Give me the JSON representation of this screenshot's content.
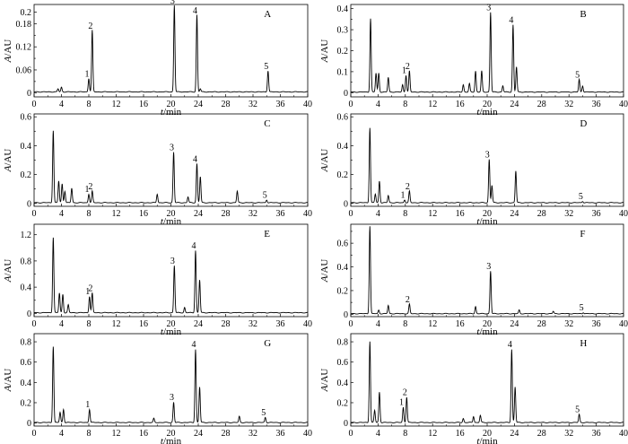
{
  "chart_data": [
    {
      "type": "line",
      "title": "A",
      "xlabel": "t/min",
      "ylabel": "A/AU",
      "xlim": [
        0,
        40
      ],
      "ylim": [
        -0.01,
        0.23
      ],
      "yticks": [
        0.0,
        0.03,
        0.06,
        0.09,
        0.12,
        0.15,
        0.18,
        0.21
      ],
      "ytick_labels": [
        "0",
        "",
        "0.06",
        "",
        "0.12",
        "",
        "0.18",
        "0.2"
      ],
      "xticks": [
        0,
        4,
        8,
        12,
        16,
        20,
        24,
        28,
        32,
        36,
        40
      ],
      "baseline": 0.003,
      "peaks": [
        [
          3.5,
          0.008
        ],
        [
          4.0,
          0.012
        ],
        [
          8.0,
          0.035
        ],
        [
          8.5,
          0.16
        ],
        [
          20.5,
          0.225
        ],
        [
          23.8,
          0.2
        ],
        [
          24.3,
          0.008
        ],
        [
          34.2,
          0.055
        ]
      ],
      "peak_labels": [
        {
          "x": 8.0,
          "text": "1"
        },
        {
          "x": 8.5,
          "text": "2"
        },
        {
          "x": 20.5,
          "text": "3"
        },
        {
          "x": 23.8,
          "text": "4"
        },
        {
          "x": 34.2,
          "text": "5"
        }
      ]
    },
    {
      "type": "line",
      "title": "B",
      "xlabel": "t/min",
      "ylabel": "A/AU",
      "xlim": [
        0,
        40
      ],
      "ylim": [
        -0.02,
        0.42
      ],
      "yticks": [
        0.0,
        0.05,
        0.1,
        0.15,
        0.2,
        0.25,
        0.3,
        0.35,
        0.4
      ],
      "ytick_labels": [
        "0",
        "",
        "0.1",
        "",
        "0.2",
        "",
        "0.3",
        "",
        "0.4"
      ],
      "xticks": [
        0,
        4,
        8,
        12,
        16,
        20,
        24,
        28,
        32,
        36,
        40
      ],
      "baseline": 0.003,
      "peaks": [
        [
          2.9,
          0.35
        ],
        [
          3.7,
          0.09
        ],
        [
          4.1,
          0.09
        ],
        [
          5.5,
          0.07
        ],
        [
          7.6,
          0.035
        ],
        [
          8.1,
          0.08
        ],
        [
          8.6,
          0.1
        ],
        [
          16.5,
          0.035
        ],
        [
          17.4,
          0.04
        ],
        [
          18.3,
          0.1
        ],
        [
          19.2,
          0.1
        ],
        [
          20.5,
          0.38
        ],
        [
          22.3,
          0.03
        ],
        [
          23.8,
          0.32
        ],
        [
          24.3,
          0.12
        ],
        [
          33.5,
          0.06
        ],
        [
          34.0,
          0.03
        ]
      ],
      "peak_labels": [
        {
          "x": 8.1,
          "text": "1"
        },
        {
          "x": 8.6,
          "text": "2"
        },
        {
          "x": 20.5,
          "text": "3"
        },
        {
          "x": 23.8,
          "text": "4"
        },
        {
          "x": 33.5,
          "text": "5"
        }
      ]
    },
    {
      "type": "line",
      "title": "C",
      "xlabel": "t/min",
      "ylabel": "A/AU",
      "xlim": [
        0,
        40
      ],
      "ylim": [
        -0.02,
        0.62
      ],
      "yticks": [
        0.0,
        0.1,
        0.2,
        0.3,
        0.4,
        0.5,
        0.6
      ],
      "ytick_labels": [
        "0",
        "",
        "0.2",
        "",
        "0.4",
        "",
        "0.6"
      ],
      "xticks": [
        0,
        4,
        8,
        12,
        16,
        20,
        24,
        28,
        32,
        36,
        40
      ],
      "baseline": 0.005,
      "peaks": [
        [
          2.8,
          0.5
        ],
        [
          3.6,
          0.15
        ],
        [
          4.1,
          0.13
        ],
        [
          4.5,
          0.08
        ],
        [
          5.5,
          0.1
        ],
        [
          8.0,
          0.06
        ],
        [
          8.5,
          0.08
        ],
        [
          18.0,
          0.06
        ],
        [
          20.4,
          0.35
        ],
        [
          22.5,
          0.04
        ],
        [
          23.8,
          0.27
        ],
        [
          24.3,
          0.18
        ],
        [
          29.7,
          0.08
        ],
        [
          34.0,
          0.02
        ]
      ],
      "peak_labels": [
        {
          "x": 8.0,
          "text": "1"
        },
        {
          "x": 8.5,
          "text": "2"
        },
        {
          "x": 20.4,
          "text": "3"
        },
        {
          "x": 23.8,
          "text": "4"
        },
        {
          "x": 34.0,
          "text": "5"
        }
      ]
    },
    {
      "type": "line",
      "title": "D",
      "xlabel": "t/min",
      "ylabel": "A/AU",
      "xlim": [
        0,
        40
      ],
      "ylim": [
        -0.02,
        0.62
      ],
      "yticks": [
        0.0,
        0.1,
        0.2,
        0.3,
        0.4,
        0.5,
        0.6
      ],
      "ytick_labels": [
        "0",
        "",
        "0.2",
        "",
        "0.4",
        "",
        "0.6"
      ],
      "xticks": [
        0,
        4,
        8,
        12,
        16,
        20,
        24,
        28,
        32,
        36,
        40
      ],
      "baseline": 0.005,
      "peaks": [
        [
          2.8,
          0.52
        ],
        [
          3.6,
          0.06
        ],
        [
          4.2,
          0.15
        ],
        [
          5.5,
          0.05
        ],
        [
          7.9,
          0.02
        ],
        [
          8.6,
          0.08
        ],
        [
          20.3,
          0.3
        ],
        [
          20.7,
          0.12
        ],
        [
          24.2,
          0.22
        ],
        [
          34.0,
          0.01
        ]
      ],
      "peak_labels": [
        {
          "x": 7.9,
          "text": "1"
        },
        {
          "x": 8.6,
          "text": "2"
        },
        {
          "x": 20.3,
          "text": "3"
        },
        {
          "x": 34.0,
          "text": "5"
        }
      ]
    },
    {
      "type": "line",
      "title": "E",
      "xlabel": "t/min",
      "ylabel": "A/AU",
      "xlim": [
        0,
        40
      ],
      "ylim": [
        -0.05,
        1.36
      ],
      "yticks": [
        0.0,
        0.2,
        0.4,
        0.6,
        0.8,
        1.0,
        1.2
      ],
      "ytick_labels": [
        "0",
        "",
        "0.4",
        "",
        "0.8",
        "",
        "1.2"
      ],
      "xticks": [
        0,
        4,
        8,
        12,
        16,
        20,
        24,
        28,
        32,
        36,
        40
      ],
      "baseline": 0.01,
      "peaks": [
        [
          2.8,
          1.15
        ],
        [
          3.7,
          0.3
        ],
        [
          4.2,
          0.28
        ],
        [
          5.0,
          0.12
        ],
        [
          8.1,
          0.25
        ],
        [
          8.5,
          0.3
        ],
        [
          20.5,
          0.72
        ],
        [
          22.0,
          0.08
        ],
        [
          23.6,
          0.95
        ],
        [
          24.2,
          0.5
        ]
      ],
      "peak_labels": [
        {
          "x": 8.1,
          "text": "1"
        },
        {
          "x": 8.5,
          "text": "2"
        },
        {
          "x": 20.5,
          "text": "3"
        },
        {
          "x": 23.6,
          "text": "4"
        }
      ]
    },
    {
      "type": "line",
      "title": "F",
      "xlabel": "t/min",
      "ylabel": "A/AU",
      "xlim": [
        0,
        40
      ],
      "ylim": [
        -0.02,
        0.76
      ],
      "yticks": [
        0.0,
        0.1,
        0.2,
        0.3,
        0.4,
        0.5,
        0.6,
        0.7
      ],
      "ytick_labels": [
        "0",
        "",
        "0.2",
        "",
        "0.4",
        "",
        "0.6",
        ""
      ],
      "xticks": [
        0,
        4,
        8,
        12,
        16,
        20,
        24,
        28,
        32,
        36,
        40
      ],
      "baseline": 0.005,
      "peaks": [
        [
          2.8,
          0.74
        ],
        [
          4.1,
          0.03
        ],
        [
          5.5,
          0.07
        ],
        [
          8.6,
          0.08
        ],
        [
          18.3,
          0.06
        ],
        [
          20.5,
          0.36
        ],
        [
          24.7,
          0.03
        ],
        [
          29.7,
          0.02
        ],
        [
          34.1,
          0.01
        ]
      ],
      "peak_labels": [
        {
          "x": 8.6,
          "text": "2"
        },
        {
          "x": 20.5,
          "text": "3"
        },
        {
          "x": 34.1,
          "text": "5"
        }
      ]
    },
    {
      "type": "line",
      "title": "G",
      "xlabel": "t/min",
      "ylabel": "A/AU",
      "xlim": [
        0,
        40
      ],
      "ylim": [
        -0.03,
        0.88
      ],
      "yticks": [
        0.0,
        0.2,
        0.4,
        0.6,
        0.8
      ],
      "ytick_labels": [
        "0",
        "0.2",
        "0.4",
        "0.6",
        "0.8"
      ],
      "xticks": [
        0,
        4,
        8,
        12,
        16,
        20,
        24,
        28,
        32,
        36,
        40
      ],
      "baseline": 0.005,
      "peaks": [
        [
          2.8,
          0.75
        ],
        [
          3.8,
          0.1
        ],
        [
          4.3,
          0.13
        ],
        [
          8.1,
          0.13
        ],
        [
          17.5,
          0.04
        ],
        [
          20.4,
          0.2
        ],
        [
          23.6,
          0.72
        ],
        [
          24.2,
          0.35
        ],
        [
          30.0,
          0.06
        ],
        [
          33.8,
          0.05
        ]
      ],
      "peak_labels": [
        {
          "x": 8.1,
          "text": "1"
        },
        {
          "x": 20.4,
          "text": "3"
        },
        {
          "x": 23.6,
          "text": "4"
        },
        {
          "x": 33.8,
          "text": "5"
        }
      ]
    },
    {
      "type": "line",
      "title": "H",
      "xlabel": "t/min",
      "ylabel": "A/AU",
      "xlim": [
        0,
        40
      ],
      "ylim": [
        -0.03,
        0.88
      ],
      "yticks": [
        0.0,
        0.2,
        0.4,
        0.6,
        0.8
      ],
      "ytick_labels": [
        "0",
        "0.2",
        "0.4",
        "0.6",
        "0.8"
      ],
      "xticks": [
        0,
        4,
        8,
        12,
        16,
        20,
        24,
        28,
        32,
        36,
        40
      ],
      "baseline": 0.005,
      "peaks": [
        [
          2.8,
          0.8
        ],
        [
          3.5,
          0.12
        ],
        [
          4.2,
          0.3
        ],
        [
          7.7,
          0.15
        ],
        [
          8.2,
          0.25
        ],
        [
          16.5,
          0.04
        ],
        [
          18.0,
          0.06
        ],
        [
          19.0,
          0.07
        ],
        [
          23.6,
          0.72
        ],
        [
          24.1,
          0.35
        ],
        [
          33.5,
          0.08
        ]
      ],
      "peak_labels": [
        {
          "x": 7.7,
          "text": "1"
        },
        {
          "x": 8.2,
          "text": "2"
        },
        {
          "x": 23.6,
          "text": "4"
        },
        {
          "x": 33.5,
          "text": "5"
        }
      ]
    }
  ]
}
